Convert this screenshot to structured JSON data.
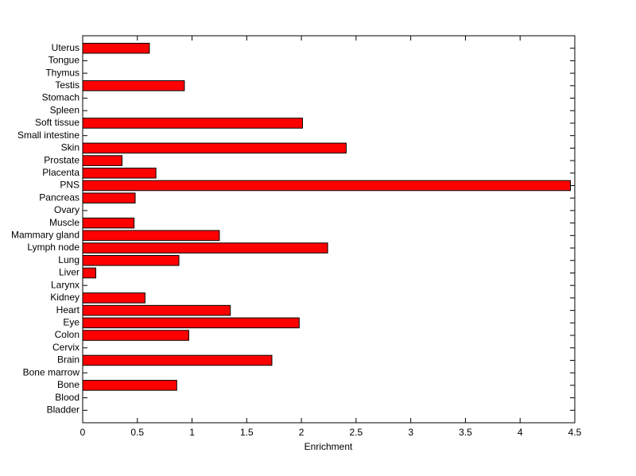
{
  "chart_data": {
    "type": "barh",
    "xlabel": "Enrichment",
    "categories": [
      "Bladder",
      "Blood",
      "Bone",
      "Bone marrow",
      "Brain",
      "Cervix",
      "Colon",
      "Eye",
      "Heart",
      "Kidney",
      "Larynx",
      "Liver",
      "Lung",
      "Lymph node",
      "Mammary gland",
      "Muscle",
      "Ovary",
      "Pancreas",
      "PNS",
      "Placenta",
      "Prostate",
      "Skin",
      "Small intestine",
      "Soft tissue",
      "Spleen",
      "Stomach",
      "Testis",
      "Thymus",
      "Tongue",
      "Uterus"
    ],
    "values": [
      0,
      0,
      0.86,
      0,
      1.73,
      0,
      0.97,
      1.98,
      1.35,
      0.57,
      0,
      0.12,
      0.88,
      2.24,
      1.25,
      0.47,
      0,
      0.48,
      4.46,
      0.67,
      0.36,
      2.41,
      0,
      2.01,
      0,
      0,
      0.93,
      0,
      0,
      0.61
    ],
    "color": "#ff0000",
    "xlim": [
      0,
      4.5
    ],
    "xticks": [
      0,
      0.5,
      1,
      1.5,
      2,
      2.5,
      3,
      3.5,
      4,
      4.5
    ],
    "grid": false
  }
}
